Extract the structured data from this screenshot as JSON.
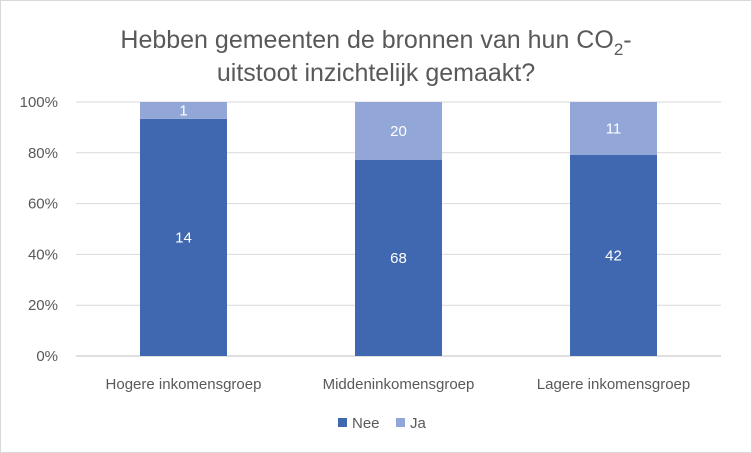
{
  "chart_data": {
    "type": "bar",
    "stacked": "percent",
    "title_parts": {
      "line1_prefix": "Hebben gemeenten de bronnen van hun CO",
      "subscript": "2",
      "line1_suffix": "-",
      "line2": "uitstoot inzichtelijk gemaakt?"
    },
    "categories": [
      "Hogere inkomensgroep",
      "Middeninkomensgroep",
      "Lagere inkomensgroep"
    ],
    "series": [
      {
        "name": "Nee",
        "values": [
          14,
          68,
          42
        ],
        "color": "#4068b0"
      },
      {
        "name": "Ja",
        "values": [
          1,
          20,
          11
        ],
        "color": "#92a7d8"
      }
    ],
    "y_ticks": [
      "0%",
      "20%",
      "40%",
      "60%",
      "80%",
      "100%"
    ],
    "ylim": [
      0,
      100
    ],
    "grid": true,
    "legend_position": "bottom"
  }
}
